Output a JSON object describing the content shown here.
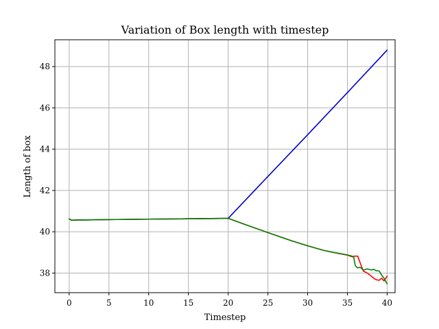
{
  "chart_data": {
    "type": "line",
    "title": "Variation of Box length with timestep",
    "xlabel": "Timestep",
    "ylabel": "Length of box",
    "xlim": [
      -1.8,
      41.0
    ],
    "ylim": [
      37.05,
      49.3
    ],
    "xticks": [
      0,
      5,
      10,
      15,
      20,
      25,
      30,
      35,
      40
    ],
    "yticks": [
      38,
      40,
      42,
      44,
      46,
      48
    ],
    "grid": true,
    "series": [
      {
        "color": "#0000cc",
        "x": [
          0,
          0.3,
          1,
          5,
          10,
          15,
          20,
          25,
          30,
          35,
          40
        ],
        "y": [
          40.62,
          40.56,
          40.57,
          40.59,
          40.61,
          40.63,
          40.65,
          42.68,
          44.7,
          46.74,
          48.8
        ]
      },
      {
        "color": "#ff0000",
        "x": [
          0,
          0.3,
          1,
          5,
          10,
          15,
          20,
          22,
          25,
          28,
          30,
          32,
          33,
          34,
          35,
          35.5,
          36,
          36.3,
          36.6,
          37,
          37.5,
          38,
          38.3,
          38.6,
          39,
          39.3,
          39.6,
          40
        ],
        "y": [
          40.62,
          40.56,
          40.57,
          40.59,
          40.61,
          40.63,
          40.65,
          40.37,
          39.96,
          39.56,
          39.32,
          39.1,
          39.02,
          38.94,
          38.87,
          38.8,
          38.82,
          38.82,
          38.5,
          38.1,
          38.0,
          37.85,
          37.75,
          37.68,
          37.65,
          37.75,
          37.62,
          37.85
        ]
      },
      {
        "color": "#008000",
        "x": [
          0,
          0.3,
          1,
          5,
          10,
          15,
          20,
          22,
          25,
          28,
          30,
          32,
          33,
          34,
          35,
          35.5,
          35.8,
          36,
          36.3,
          36.6,
          37,
          37.5,
          38,
          38.3,
          38.6,
          39,
          39.3,
          39.6,
          40
        ],
        "y": [
          40.62,
          40.56,
          40.57,
          40.59,
          40.61,
          40.63,
          40.65,
          40.37,
          39.96,
          39.56,
          39.32,
          39.1,
          39.02,
          38.95,
          38.88,
          38.83,
          38.75,
          38.35,
          38.25,
          38.28,
          38.15,
          38.2,
          38.15,
          38.18,
          38.12,
          38.1,
          37.9,
          37.75,
          37.48
        ]
      }
    ]
  }
}
